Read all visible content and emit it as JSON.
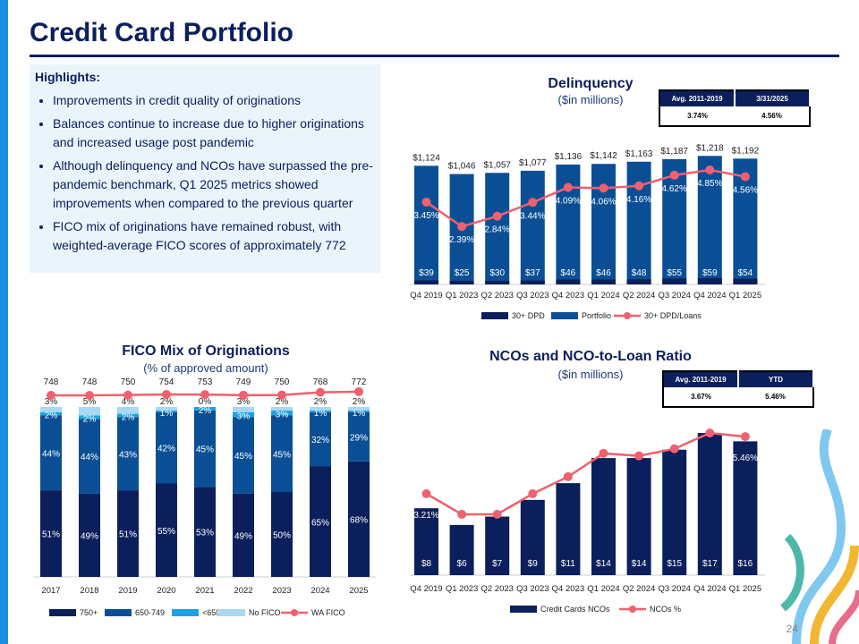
{
  "title": "Credit Card Portfolio",
  "highlights": {
    "heading": "Highlights:",
    "bullets": [
      "Improvements in credit quality of originations",
      "Balances continue to increase due to higher originations and increased usage post pandemic",
      "Although delinquency and NCOs have surpassed the pre-pandemic benchmark, Q1 2025 metrics showed improvements when compared to the previous quarter",
      "FICO mix of originations have remained robust, with weighted-average FICO scores of approximately 772"
    ]
  },
  "delinquency_table": {
    "headers": [
      "Avg. 2011-2019",
      "3/31/2025"
    ],
    "values": [
      "3.74%",
      "4.56%"
    ]
  },
  "nco_table": {
    "headers": [
      "Avg. 2011-2019",
      "YTD"
    ],
    "values": [
      "3.67%",
      "5.46%"
    ]
  },
  "page_number": "24",
  "colors": {
    "navy": "#0b1f5c",
    "portfolio": "#0a4f96",
    "line": "#f0606e",
    "lt": "#1aa3e0",
    "nofico": "#a9d8f2"
  },
  "chart_data": [
    {
      "type": "bar",
      "title": "Delinquency",
      "subtitle": "($in millions)",
      "categories": [
        "Q4 2019",
        "Q1 2023",
        "Q2 2023",
        "Q3 2023",
        "Q4 2023",
        "Q1 2024",
        "Q2 2024",
        "Q3 2024",
        "Q4 2024",
        "Q1 2025"
      ],
      "series": [
        {
          "name": "30+ DPD",
          "values": [
            39,
            25,
            30,
            37,
            46,
            46,
            48,
            55,
            59,
            54
          ],
          "labels": [
            "$39",
            "$25",
            "$30",
            "$37",
            "$46",
            "$46",
            "$48",
            "$55",
            "$59",
            "$54"
          ]
        },
        {
          "name": "Portfolio",
          "values": [
            1124,
            1046,
            1057,
            1077,
            1136,
            1142,
            1163,
            1187,
            1218,
            1192
          ],
          "labels": [
            "$1,124",
            "$1,046",
            "$1,057",
            "$1,077",
            "$1,136",
            "$1,142",
            "$1,163",
            "$1,187",
            "$1,218",
            "$1,192"
          ]
        },
        {
          "name": "30+ DPD/Loans",
          "values": [
            3.45,
            2.39,
            2.84,
            3.44,
            4.09,
            4.06,
            4.16,
            4.62,
            4.85,
            4.56
          ],
          "labels": [
            "3.45%",
            "2.39%",
            "2.84%",
            "3.44%",
            "4.09%",
            "4.06%",
            "4.16%",
            "4.62%",
            "4.85%",
            "4.56%"
          ]
        }
      ]
    },
    {
      "type": "bar",
      "title": "FICO Mix of Originations",
      "subtitle": "(% of approved amount)",
      "categories": [
        "2017",
        "2018",
        "2019",
        "2020",
        "2021",
        "2022",
        "2023",
        "2024",
        "2025"
      ],
      "series": [
        {
          "name": "750+",
          "values": [
            51,
            49,
            51,
            55,
            53,
            49,
            50,
            65,
            68
          ]
        },
        {
          "name": "650-749",
          "values": [
            44,
            44,
            43,
            42,
            45,
            45,
            45,
            32,
            29
          ]
        },
        {
          "name": "<650",
          "values": [
            2,
            2,
            2,
            1,
            2,
            3,
            3,
            1,
            1
          ]
        },
        {
          "name": "No FICO",
          "values": [
            3,
            5,
            4,
            2,
            0,
            3,
            2,
            2,
            2
          ]
        },
        {
          "name": "WA FICO",
          "values": [
            748,
            748,
            750,
            754,
            753,
            749,
            750,
            768,
            772
          ]
        }
      ]
    },
    {
      "type": "bar",
      "title": "NCOs and NCO-to-Loan Ratio",
      "subtitle": "($in millions)",
      "categories": [
        "Q4 2019",
        "Q1 2023",
        "Q2 2023",
        "Q3 2023",
        "Q4 2023",
        "Q1 2024",
        "Q2 2024",
        "Q3 2024",
        "Q4 2024",
        "Q1 2025"
      ],
      "series": [
        {
          "name": "Credit Cards NCOs",
          "values": [
            8,
            6,
            7,
            9,
            11,
            14,
            14,
            15,
            17,
            16
          ],
          "labels": [
            "$8",
            "$6",
            "$7",
            "$9",
            "$11",
            "$14",
            "$14",
            "$15",
            "$17",
            "$16"
          ]
        },
        {
          "name": "NCOs %",
          "values": [
            3.21,
            2.4,
            2.4,
            3.21,
            3.88,
            4.8,
            4.7,
            4.98,
            5.6,
            5.46
          ],
          "labels": [
            "3.21%",
            "",
            "",
            "",
            "",
            "",
            "",
            "",
            "",
            "5.46%"
          ]
        }
      ]
    }
  ]
}
